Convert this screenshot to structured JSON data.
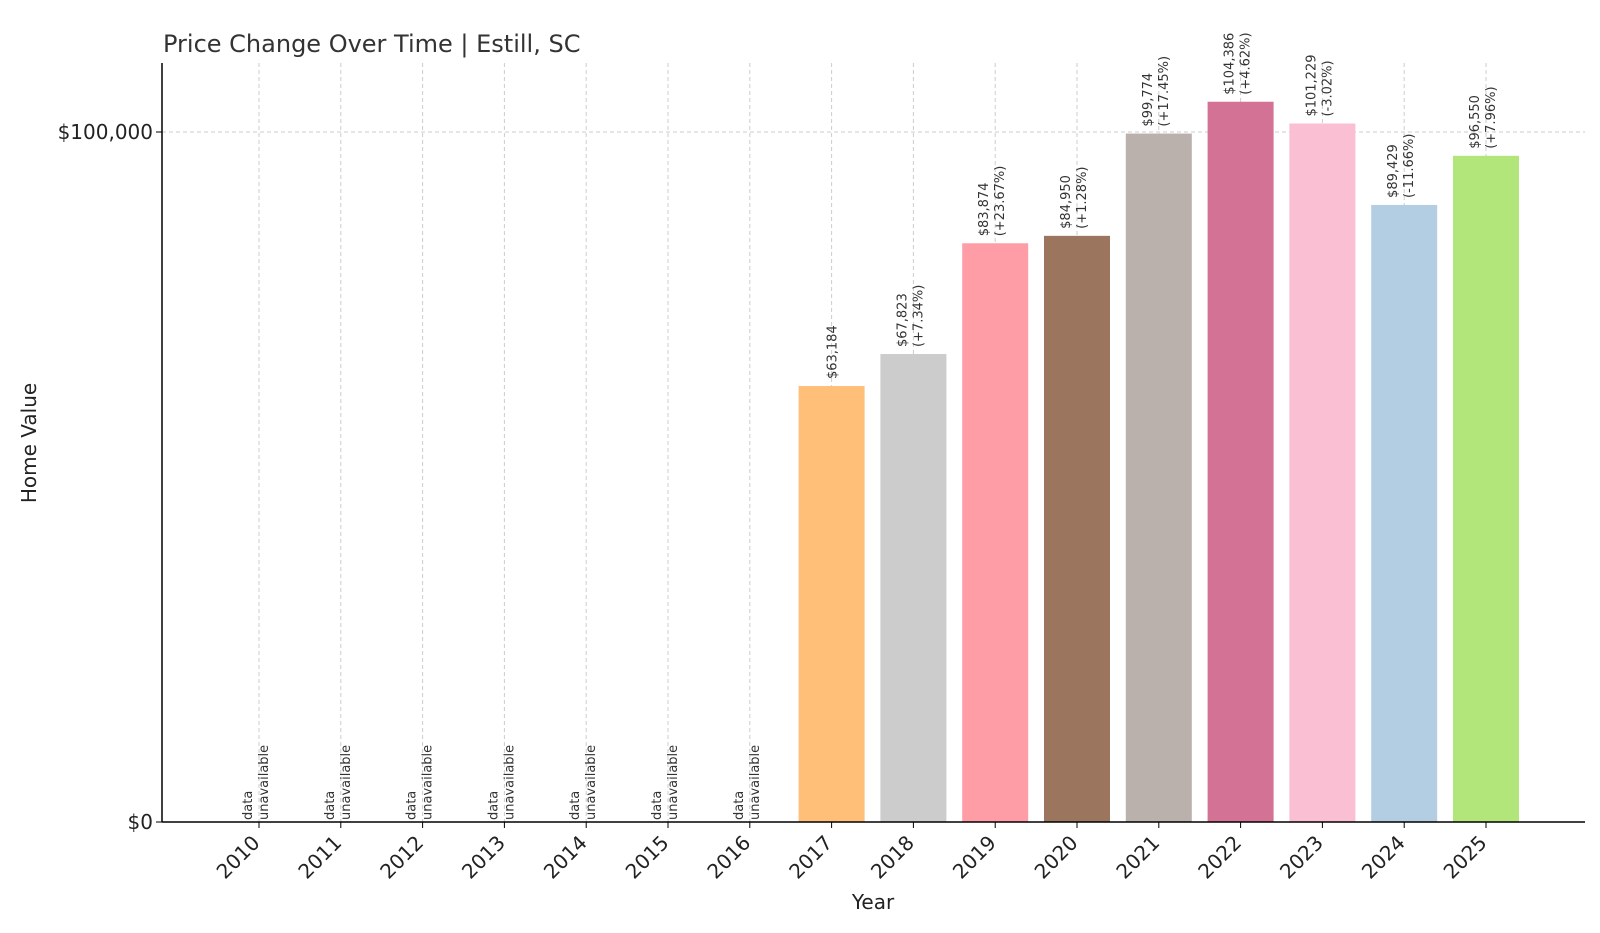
{
  "chart_data": {
    "type": "bar",
    "title": "Price Change Over Time | Estill, SC",
    "xlabel": "Year",
    "ylabel": "Home Value",
    "ylim": [
      0,
      110000
    ],
    "yticks": [
      {
        "value": 0,
        "label": "$0"
      },
      {
        "value": 100000,
        "label": "$100,000"
      }
    ],
    "grid": true,
    "categories": [
      "2010",
      "2011",
      "2012",
      "2013",
      "2014",
      "2015",
      "2016",
      "2017",
      "2018",
      "2019",
      "2020",
      "2021",
      "2022",
      "2023",
      "2024",
      "2025"
    ],
    "values": [
      null,
      null,
      null,
      null,
      null,
      null,
      null,
      63184,
      67823,
      83874,
      84950,
      99774,
      104386,
      101229,
      89429,
      96550
    ],
    "value_labels": [
      "",
      "",
      "",
      "",
      "",
      "",
      "",
      "$63,184",
      "$67,823",
      "$83,874",
      "$84,950",
      "$99,774",
      "$104,386",
      "$101,229",
      "$89,429",
      "$96,550"
    ],
    "change_labels": [
      "",
      "",
      "",
      "",
      "",
      "",
      "",
      "",
      "(+7.34%)",
      "(+23.67%)",
      "(+1.28%)",
      "(+17.45%)",
      "(+4.62%)",
      "(-3.02%)",
      "(-11.66%)",
      "(+7.96%)"
    ],
    "unavailable_label": [
      "data",
      "unavailable"
    ],
    "colors": [
      "#ff9da7",
      "#9c755f",
      "#bab0ac",
      "#d37295",
      "#fabfd2",
      "#b3cde3",
      "#b3e67a",
      "#ffbf79",
      "#cccccc",
      "#ff9da7",
      "#9c755f",
      "#bab0ac",
      "#d37295",
      "#fabfd2",
      "#b3cde3",
      "#b3e67a"
    ]
  }
}
